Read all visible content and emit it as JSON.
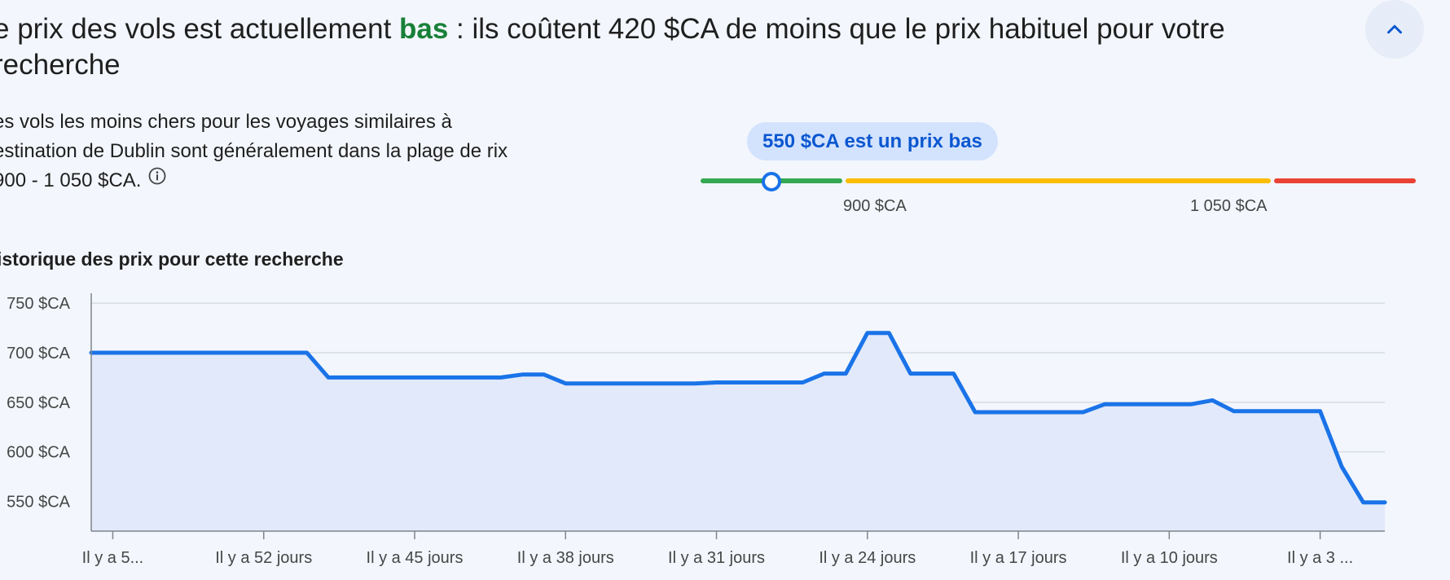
{
  "headline": {
    "prefix": "e prix des vols est actuellement ",
    "highlight": "bas",
    "suffix": " : ils coûtent 420 $CA de moins que le prix habituel pour votre recherche"
  },
  "description": {
    "text": "es vols les moins chers pour les voyages similaires à estination de Dublin sont généralement dans la plage de rix 900 - 1 050 $CA.",
    "info_icon": "info-circle-icon"
  },
  "collapse_button": {
    "icon": "chevron-up-icon"
  },
  "price_range": {
    "tooltip": "550 $CA est un prix bas",
    "ticks": [
      "900 $CA",
      "1 050 $CA"
    ],
    "current_price": 550,
    "colors": {
      "low": "#34a853",
      "typical": "#fbbc04",
      "high": "#ea4335",
      "marker": "#1a73e8"
    }
  },
  "history_title": "istorique des prix pour cette recherche",
  "chart_data": {
    "type": "area",
    "title": "",
    "xlabel": "",
    "ylabel": "",
    "ylim": [
      520,
      760
    ],
    "yticks": [
      550,
      600,
      650,
      700,
      750
    ],
    "ytick_labels": [
      "550 $CA",
      "600 $CA",
      "650 $CA",
      "700 $CA",
      "750 $CA"
    ],
    "x_tick_labels": [
      "Il y a 5...",
      "Il y a 52 jours",
      "Il y a 45 jours",
      "Il y a 38 jours",
      "Il y a 31 jours",
      "Il y a 24 jours",
      "Il y a 17 jours",
      "Il y a 10 jours",
      "Il y a 3 ..."
    ],
    "x_tick_days_ago": [
      59,
      52,
      45,
      38,
      31,
      24,
      17,
      10,
      3
    ],
    "x_range": [
      60,
      0
    ],
    "grid": true,
    "line_color": "#1a73e8",
    "fill_color": "#e1e9fa",
    "series": [
      {
        "days_ago": [
          60,
          50,
          49,
          42,
          41,
          40,
          39,
          38,
          37,
          32,
          31,
          27,
          26,
          25,
          24,
          23,
          22,
          21,
          20,
          19,
          14,
          13,
          12,
          9,
          8,
          7,
          3,
          2,
          1,
          0
        ],
        "values": [
          700,
          700,
          675,
          675,
          675,
          678,
          678,
          669,
          669,
          669,
          670,
          670,
          679,
          679,
          720,
          720,
          679,
          679,
          679,
          640,
          640,
          648,
          648,
          648,
          652,
          641,
          641,
          585,
          549,
          549
        ]
      }
    ]
  }
}
